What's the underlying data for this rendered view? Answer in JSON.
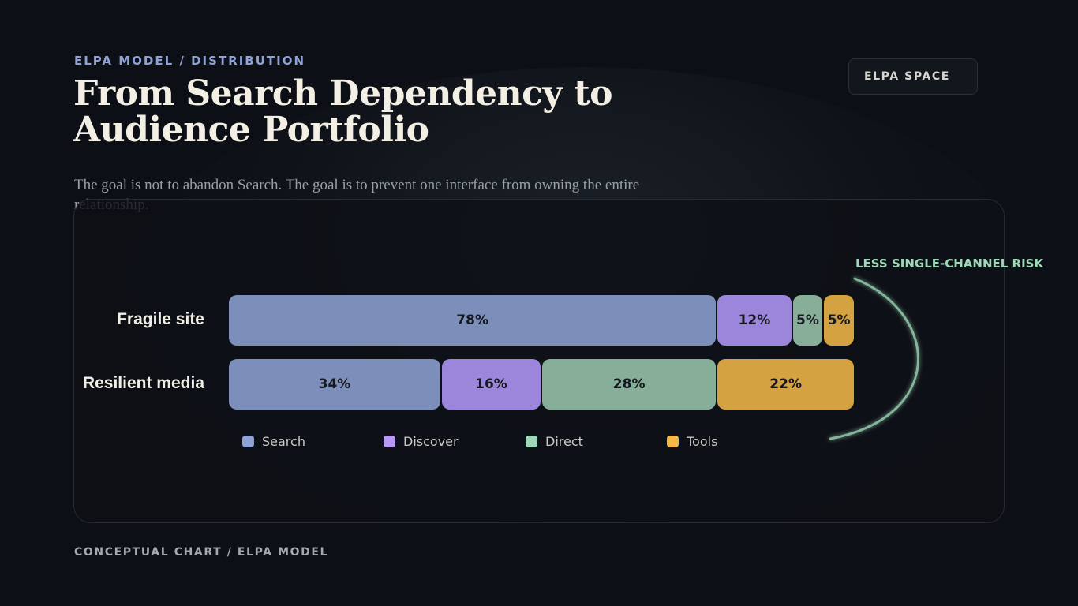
{
  "header": {
    "eyebrow": "ELPA MODEL / DISTRIBUTION",
    "title_line1": "From Search Dependency to",
    "title_line2": "Audience Portfolio",
    "subtitle": "The goal is not to abandon Search. The goal is to prevent one interface from owning the entire relationship.",
    "badge": "ELPA SPACE"
  },
  "footer": {
    "caption": "CONCEPTUAL CHART / ELPA MODEL"
  },
  "chart_data": {
    "type": "bar",
    "orientation": "horizontal",
    "stacked": true,
    "categories": [
      "Fragile site",
      "Resilient media"
    ],
    "series": [
      {
        "name": "Search",
        "values": [
          78,
          34
        ],
        "color": "#7b8fba"
      },
      {
        "name": "Discover",
        "values": [
          12,
          16
        ],
        "color": "#9c86db"
      },
      {
        "name": "Direct",
        "values": [
          5,
          28
        ],
        "color": "#86ae98"
      },
      {
        "name": "Tools",
        "values": [
          5,
          22
        ],
        "color": "#d4a240"
      }
    ],
    "value_suffix": "%",
    "legend_swatch_colors": [
      "#8fa3d6",
      "#b89af5",
      "#9fd8b8",
      "#f3b845"
    ],
    "legend": "bottom",
    "annotation": {
      "text": "LESS SINGLE-CHANNEL RISK",
      "color": "#9fd8b8"
    },
    "title": "",
    "xlabel": "",
    "ylabel": "",
    "grid": false
  }
}
